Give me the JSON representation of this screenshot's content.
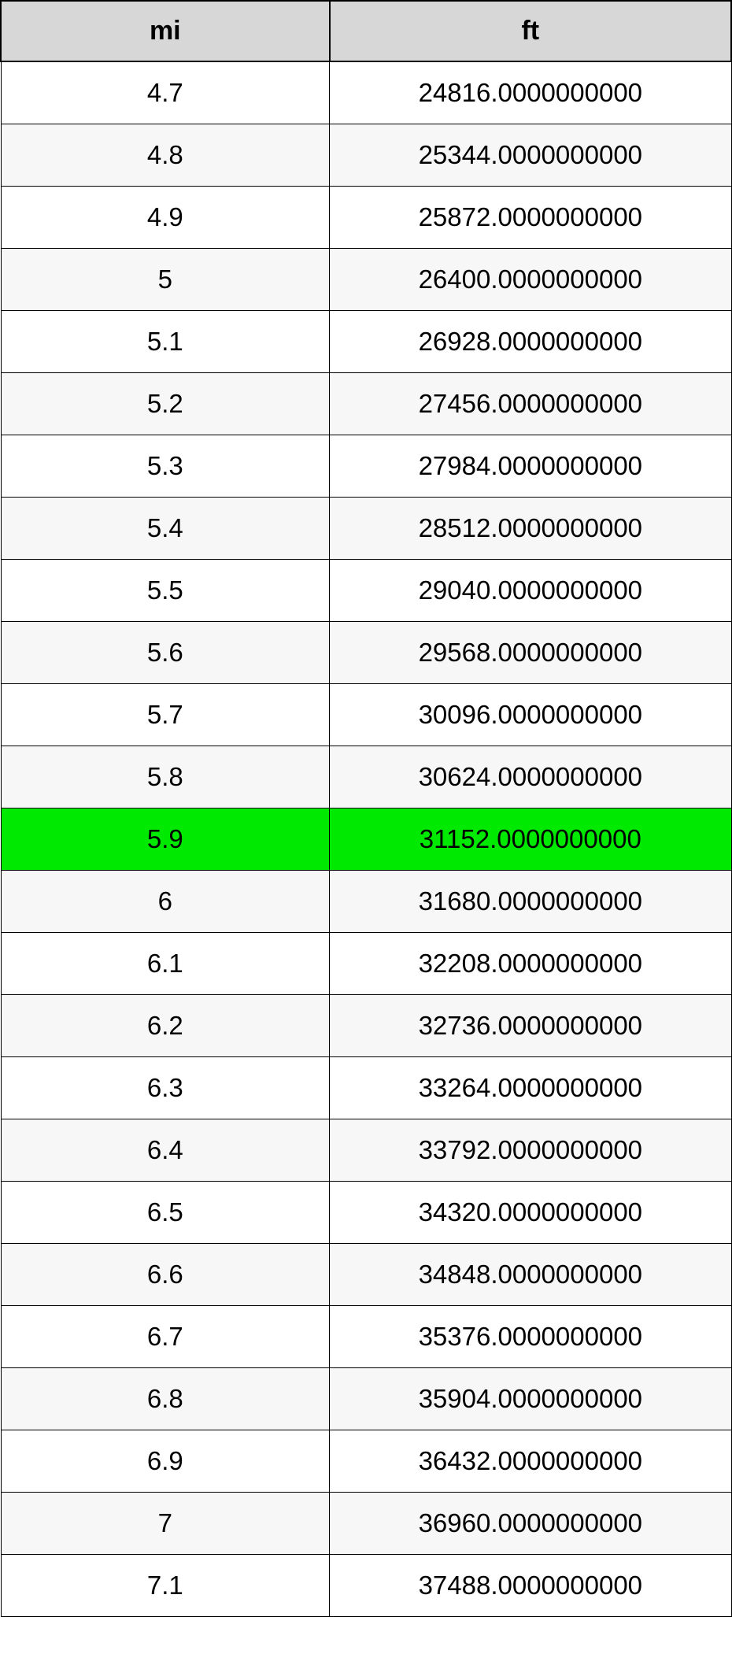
{
  "table": {
    "type": "table",
    "header_background": "#d7d7d7",
    "border_color": "#000000",
    "row_colors": {
      "even": "#ffffff",
      "odd": "#f7f7f7",
      "highlight": "#00e900"
    },
    "font_family": "Arial",
    "header_fontsize": 34,
    "cell_fontsize": 33,
    "columns": [
      {
        "label": "mi",
        "align": "center"
      },
      {
        "label": "ft",
        "align": "center"
      }
    ],
    "highlighted_row_index": 12,
    "rows": [
      {
        "mi": "4.7",
        "ft": "24816.0000000000"
      },
      {
        "mi": "4.8",
        "ft": "25344.0000000000"
      },
      {
        "mi": "4.9",
        "ft": "25872.0000000000"
      },
      {
        "mi": "5",
        "ft": "26400.0000000000"
      },
      {
        "mi": "5.1",
        "ft": "26928.0000000000"
      },
      {
        "mi": "5.2",
        "ft": "27456.0000000000"
      },
      {
        "mi": "5.3",
        "ft": "27984.0000000000"
      },
      {
        "mi": "5.4",
        "ft": "28512.0000000000"
      },
      {
        "mi": "5.5",
        "ft": "29040.0000000000"
      },
      {
        "mi": "5.6",
        "ft": "29568.0000000000"
      },
      {
        "mi": "5.7",
        "ft": "30096.0000000000"
      },
      {
        "mi": "5.8",
        "ft": "30624.0000000000"
      },
      {
        "mi": "5.9",
        "ft": "31152.0000000000"
      },
      {
        "mi": "6",
        "ft": "31680.0000000000"
      },
      {
        "mi": "6.1",
        "ft": "32208.0000000000"
      },
      {
        "mi": "6.2",
        "ft": "32736.0000000000"
      },
      {
        "mi": "6.3",
        "ft": "33264.0000000000"
      },
      {
        "mi": "6.4",
        "ft": "33792.0000000000"
      },
      {
        "mi": "6.5",
        "ft": "34320.0000000000"
      },
      {
        "mi": "6.6",
        "ft": "34848.0000000000"
      },
      {
        "mi": "6.7",
        "ft": "35376.0000000000"
      },
      {
        "mi": "6.8",
        "ft": "35904.0000000000"
      },
      {
        "mi": "6.9",
        "ft": "36432.0000000000"
      },
      {
        "mi": "7",
        "ft": "36960.0000000000"
      },
      {
        "mi": "7.1",
        "ft": "37488.0000000000"
      }
    ]
  }
}
